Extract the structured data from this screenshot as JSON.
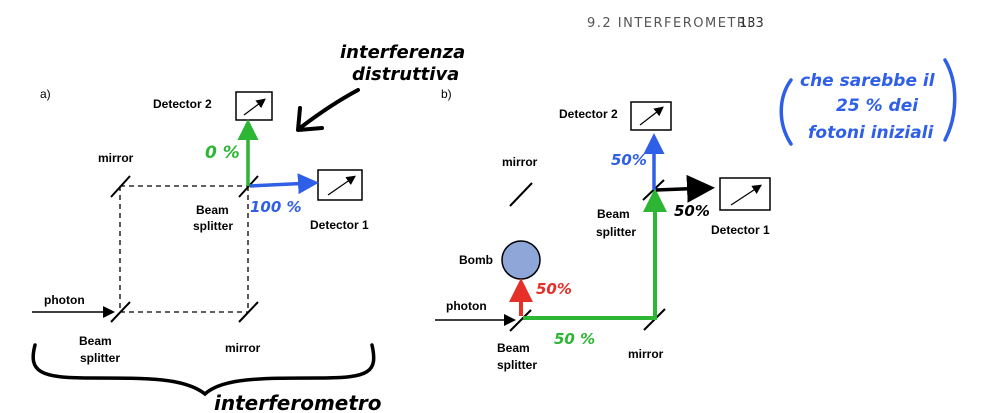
{
  "header": {
    "section": "9.2 INTERFEROMETRI",
    "page_number": "133"
  },
  "panel_a": {
    "tag": "a)",
    "detector2": "Detector 2",
    "detector1": "Detector 1",
    "mirror_top": "mirror",
    "mirror_bottom": "mirror",
    "beam_splitter_top": [
      "Beam",
      "splitter"
    ],
    "beam_splitter_bottom": [
      "Beam",
      "splitter"
    ],
    "photon": "photon",
    "note_up": "0 %",
    "note_right": "100 %",
    "note_title": [
      "interferenza",
      "distruttiva"
    ],
    "note_brace": "interferometro"
  },
  "panel_b": {
    "tag": "b)",
    "detector2": "Detector 2",
    "detector1": "Detector 1",
    "mirror_top": "mirror",
    "mirror_bottom": "mirror",
    "beam_splitter_top": [
      "Beam",
      "splitter"
    ],
    "beam_splitter_bottom": [
      "Beam",
      "splitter"
    ],
    "bomb": "Bomb",
    "photon": "photon",
    "pct_up": "50%",
    "pct_right": "50%",
    "pct_bomb": "50%",
    "pct_bottom": "50 %",
    "note_paren": [
      "che sarebbe il",
      "25 % dei",
      "fotoni iniziali"
    ]
  },
  "colors": {
    "green": "#2db534",
    "blue": "#2f5fe6",
    "red": "#e5302a",
    "bomb": "#8fa6d8",
    "ink": "#000000"
  }
}
